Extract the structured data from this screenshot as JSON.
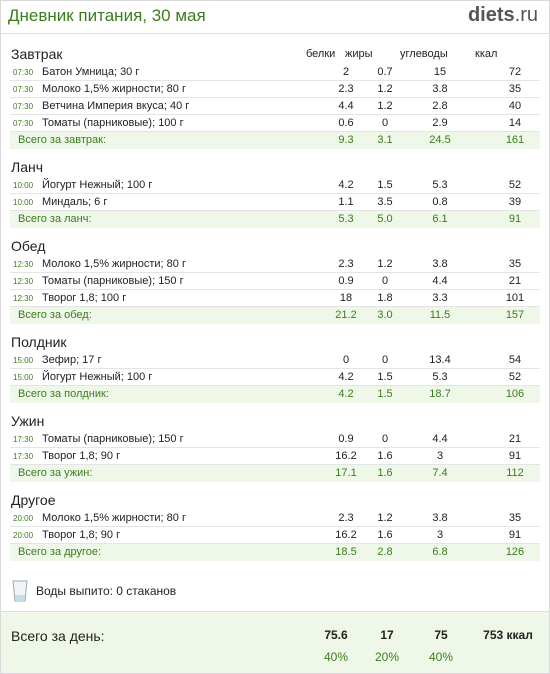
{
  "header": {
    "title": "Дневник питания, 30 мая",
    "brand_name": "diets",
    "brand_tld": ".ru"
  },
  "columns": {
    "protein": "белки",
    "fat": "жиры",
    "carbs": "углеводы",
    "kcal": "ккал"
  },
  "sections": [
    {
      "title": "Завтрак",
      "rows": [
        {
          "time": "07:30",
          "food": "Батон Умница; 30 г",
          "p": "2",
          "f": "0.7",
          "c": "15",
          "k": "72"
        },
        {
          "time": "07:30",
          "food": "Молоко 1,5% жирности; 80 г",
          "p": "2.3",
          "f": "1.2",
          "c": "3.8",
          "k": "35"
        },
        {
          "time": "07:30",
          "food": "Ветчина Империя вкуса; 40 г",
          "p": "4.4",
          "f": "1.2",
          "c": "2.8",
          "k": "40"
        },
        {
          "time": "07:30",
          "food": "Томаты (парниковые); 100 г",
          "p": "0.6",
          "f": "0",
          "c": "2.9",
          "k": "14"
        }
      ],
      "total": {
        "label": "Всего за завтрак:",
        "p": "9.3",
        "f": "3.1",
        "c": "24.5",
        "k": "161"
      }
    },
    {
      "title": "Ланч",
      "rows": [
        {
          "time": "10:00",
          "food": "Йогурт Нежный; 100 г",
          "p": "4.2",
          "f": "1.5",
          "c": "5.3",
          "k": "52"
        },
        {
          "time": "10:00",
          "food": "Миндаль; 6 г",
          "p": "1.1",
          "f": "3.5",
          "c": "0.8",
          "k": "39"
        }
      ],
      "total": {
        "label": "Всего за ланч:",
        "p": "5.3",
        "f": "5.0",
        "c": "6.1",
        "k": "91"
      }
    },
    {
      "title": "Обед",
      "rows": [
        {
          "time": "12:30",
          "food": "Молоко 1,5% жирности; 80 г",
          "p": "2.3",
          "f": "1.2",
          "c": "3.8",
          "k": "35"
        },
        {
          "time": "12:30",
          "food": "Томаты (парниковые); 150 г",
          "p": "0.9",
          "f": "0",
          "c": "4.4",
          "k": "21"
        },
        {
          "time": "12:30",
          "food": "Творог 1,8; 100 г",
          "p": "18",
          "f": "1.8",
          "c": "3.3",
          "k": "101"
        }
      ],
      "total": {
        "label": "Всего за обед:",
        "p": "21.2",
        "f": "3.0",
        "c": "11.5",
        "k": "157"
      }
    },
    {
      "title": "Полдник",
      "rows": [
        {
          "time": "15:00",
          "food": "Зефир; 17 г",
          "p": "0",
          "f": "0",
          "c": "13.4",
          "k": "54"
        },
        {
          "time": "15:00",
          "food": "Йогурт Нежный; 100 г",
          "p": "4.2",
          "f": "1.5",
          "c": "5.3",
          "k": "52"
        }
      ],
      "total": {
        "label": "Всего за полдник:",
        "p": "4.2",
        "f": "1.5",
        "c": "18.7",
        "k": "106"
      }
    },
    {
      "title": "Ужин",
      "rows": [
        {
          "time": "17:30",
          "food": "Томаты (парниковые); 150 г",
          "p": "0.9",
          "f": "0",
          "c": "4.4",
          "k": "21"
        },
        {
          "time": "17:30",
          "food": "Творог 1,8; 90 г",
          "p": "16.2",
          "f": "1.6",
          "c": "3",
          "k": "91"
        }
      ],
      "total": {
        "label": "Всего за ужин:",
        "p": "17.1",
        "f": "1.6",
        "c": "7.4",
        "k": "112"
      }
    },
    {
      "title": "Другое",
      "rows": [
        {
          "time": "20:00",
          "food": "Молоко 1,5% жирности; 80 г",
          "p": "2.3",
          "f": "1.2",
          "c": "3.8",
          "k": "35"
        },
        {
          "time": "20:00",
          "food": "Творог 1,8; 90 г",
          "p": "16.2",
          "f": "1.6",
          "c": "3",
          "k": "91"
        }
      ],
      "total": {
        "label": "Всего за другое:",
        "p": "18.5",
        "f": "2.8",
        "c": "6.8",
        "k": "126"
      }
    }
  ],
  "water": {
    "text": "Воды выпито: 0 стаканов",
    "icon": "water-glass-icon"
  },
  "day_total": {
    "label": "Всего за день:",
    "protein": "75.6",
    "fat": "17",
    "carbs": "75",
    "kcal": "753 ккал",
    "protein_pct": "40%",
    "fat_pct": "20%",
    "carbs_pct": "40%"
  },
  "colors": {
    "accent": "#3b7d1e",
    "total_bg": "#eef7e8"
  }
}
